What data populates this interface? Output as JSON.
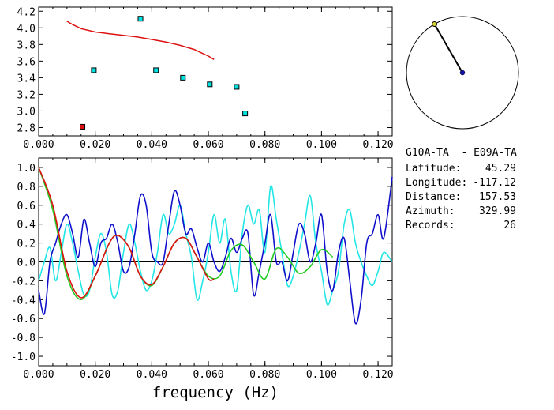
{
  "chart_data": [
    {
      "id": "top",
      "type": "scatter",
      "xlim": [
        0.0,
        0.125
      ],
      "ylim": [
        2.7,
        4.25
      ],
      "xticks": [
        "0.000",
        "0.020",
        "0.040",
        "0.060",
        "0.080",
        "0.100",
        "0.120"
      ],
      "yticks": [
        "2.8",
        "3.0",
        "3.2",
        "3.4",
        "3.6",
        "3.8",
        "4.0",
        "4.2"
      ],
      "points": [
        {
          "x": 0.0195,
          "y": 3.49,
          "color": "#00e0e0"
        },
        {
          "x": 0.036,
          "y": 4.11,
          "color": "#00e0e0"
        },
        {
          "x": 0.0415,
          "y": 3.49,
          "color": "#00e0e0"
        },
        {
          "x": 0.051,
          "y": 3.4,
          "color": "#00e0e0"
        },
        {
          "x": 0.0605,
          "y": 3.32,
          "color": "#00e0e0"
        },
        {
          "x": 0.07,
          "y": 3.29,
          "color": "#00e0e0"
        },
        {
          "x": 0.073,
          "y": 2.97,
          "color": "#00e0e0"
        },
        {
          "x": 0.0155,
          "y": 2.81,
          "color": "#e01010"
        }
      ],
      "curve": {
        "color": "#dd1111",
        "x": [
          0.01,
          0.012,
          0.015,
          0.02,
          0.025,
          0.03,
          0.035,
          0.04,
          0.045,
          0.05,
          0.055,
          0.06,
          0.062
        ],
        "y": [
          4.08,
          4.04,
          3.99,
          3.95,
          3.93,
          3.91,
          3.89,
          3.86,
          3.83,
          3.79,
          3.74,
          3.66,
          3.62
        ]
      }
    },
    {
      "id": "bottom",
      "type": "line",
      "xlabel": "frequency (Hz)",
      "xlim": [
        0.0,
        0.125
      ],
      "ylim": [
        -1.1,
        1.1
      ],
      "xticks": [
        "0.000",
        "0.020",
        "0.040",
        "0.060",
        "0.080",
        "0.100",
        "0.120"
      ],
      "yticks": [
        "1.0",
        "0.8",
        "0.6",
        "0.4",
        "0.2",
        "0.0",
        "-0.2",
        "-0.4",
        "-0.6",
        "-0.8",
        "-1.0"
      ],
      "series": [
        {
          "name": "cyan",
          "color": "#22e6e6",
          "x": [
            0.0,
            0.002,
            0.004,
            0.006,
            0.008,
            0.01,
            0.012,
            0.014,
            0.016,
            0.018,
            0.02,
            0.022,
            0.024,
            0.026,
            0.028,
            0.03,
            0.032,
            0.034,
            0.036,
            0.038,
            0.04,
            0.042,
            0.044,
            0.046,
            0.048,
            0.05,
            0.052,
            0.054,
            0.056,
            0.058,
            0.06,
            0.062,
            0.064,
            0.066,
            0.068,
            0.07,
            0.072,
            0.074,
            0.076,
            0.078,
            0.08,
            0.082,
            0.084,
            0.086,
            0.088,
            0.09,
            0.092,
            0.094,
            0.096,
            0.098,
            0.1,
            0.102,
            0.104,
            0.106,
            0.108,
            0.11,
            0.112,
            0.114,
            0.116,
            0.118,
            0.12,
            0.122,
            0.125
          ],
          "y": [
            -0.2,
            0.0,
            0.15,
            -0.2,
            0.1,
            0.4,
            0.2,
            -0.1,
            -0.35,
            -0.3,
            0.05,
            0.3,
            0.1,
            -0.35,
            -0.3,
            0.1,
            0.4,
            0.2,
            -0.1,
            -0.3,
            -0.2,
            0.1,
            0.5,
            0.3,
            0.4,
            0.6,
            0.3,
            0.05,
            -0.4,
            -0.2,
            0.1,
            0.5,
            0.2,
            0.45,
            -0.1,
            -0.3,
            0.3,
            0.6,
            0.4,
            0.55,
            0.1,
            0.8,
            0.45,
            0.1,
            -0.25,
            -0.15,
            0.1,
            0.4,
            0.7,
            0.2,
            -0.1,
            -0.45,
            -0.3,
            -0.1,
            0.4,
            0.55,
            0.2,
            0.0,
            -0.15,
            -0.25,
            -0.1,
            0.1,
            0.0
          ]
        },
        {
          "name": "blue",
          "color": "#1010cc",
          "x": [
            0.0,
            0.002,
            0.004,
            0.006,
            0.008,
            0.01,
            0.012,
            0.014,
            0.016,
            0.018,
            0.02,
            0.022,
            0.024,
            0.026,
            0.028,
            0.03,
            0.032,
            0.034,
            0.036,
            0.038,
            0.04,
            0.042,
            0.044,
            0.046,
            0.048,
            0.05,
            0.052,
            0.054,
            0.056,
            0.058,
            0.06,
            0.062,
            0.064,
            0.066,
            0.068,
            0.07,
            0.072,
            0.074,
            0.076,
            0.078,
            0.08,
            0.082,
            0.084,
            0.086,
            0.088,
            0.09,
            0.092,
            0.094,
            0.096,
            0.098,
            0.1,
            0.102,
            0.104,
            0.106,
            0.108,
            0.11,
            0.112,
            0.114,
            0.116,
            0.118,
            0.12,
            0.122,
            0.125
          ],
          "y": [
            -0.3,
            -0.55,
            0.0,
            0.2,
            0.4,
            0.5,
            0.3,
            0.05,
            0.45,
            0.2,
            -0.05,
            0.2,
            0.25,
            0.4,
            0.2,
            -0.1,
            -0.05,
            0.3,
            0.7,
            0.6,
            0.1,
            0.0,
            0.0,
            0.4,
            0.75,
            0.6,
            0.3,
            0.35,
            0.15,
            0.0,
            0.2,
            0.0,
            -0.1,
            0.05,
            0.25,
            0.1,
            0.25,
            0.3,
            -0.35,
            -0.1,
            0.2,
            0.5,
            0.0,
            0.0,
            -0.2,
            0.1,
            0.4,
            0.3,
            0.0,
            0.2,
            0.5,
            -0.1,
            -0.3,
            0.1,
            0.25,
            -0.2,
            -0.65,
            -0.4,
            0.2,
            0.3,
            0.5,
            0.25,
            0.9
          ]
        },
        {
          "name": "green",
          "color": "#22cc22",
          "x": [
            0.0,
            0.005,
            0.01,
            0.015,
            0.02,
            0.025,
            0.028,
            0.032,
            0.036,
            0.04,
            0.044,
            0.048,
            0.052,
            0.056,
            0.06,
            0.064,
            0.068,
            0.072,
            0.076,
            0.08,
            0.084,
            0.088,
            0.092,
            0.096,
            0.1,
            0.104
          ],
          "y": [
            1.0,
            0.55,
            -0.15,
            -0.4,
            -0.15,
            0.2,
            0.28,
            0.15,
            -0.15,
            -0.25,
            -0.05,
            0.2,
            0.25,
            0.05,
            -0.15,
            -0.15,
            0.12,
            0.18,
            0.0,
            -0.18,
            0.14,
            0.05,
            -0.12,
            -0.05,
            0.13,
            0.05
          ]
        },
        {
          "name": "red",
          "color": "#dd1111",
          "x": [
            0.0,
            0.005,
            0.01,
            0.015,
            0.02,
            0.025,
            0.028,
            0.032,
            0.036,
            0.04,
            0.044,
            0.048,
            0.052,
            0.056,
            0.06,
            0.062
          ],
          "y": [
            1.0,
            0.6,
            -0.1,
            -0.38,
            -0.15,
            0.2,
            0.28,
            0.15,
            -0.15,
            -0.24,
            -0.05,
            0.2,
            0.25,
            0.05,
            -0.18,
            -0.18
          ]
        }
      ]
    }
  ],
  "compass": {
    "azimuth_deg": 329.99
  },
  "info": {
    "station_pair": "G10A-TA  - E09A-TA",
    "rows": [
      {
        "label": "Latitude:",
        "value": "45.29"
      },
      {
        "label": "Longitude:",
        "value": "-117.12"
      },
      {
        "label": "Distance:",
        "value": "157.53"
      },
      {
        "label": "Azimuth:",
        "value": "329.99"
      },
      {
        "label": "Records:",
        "value": "26"
      }
    ]
  }
}
